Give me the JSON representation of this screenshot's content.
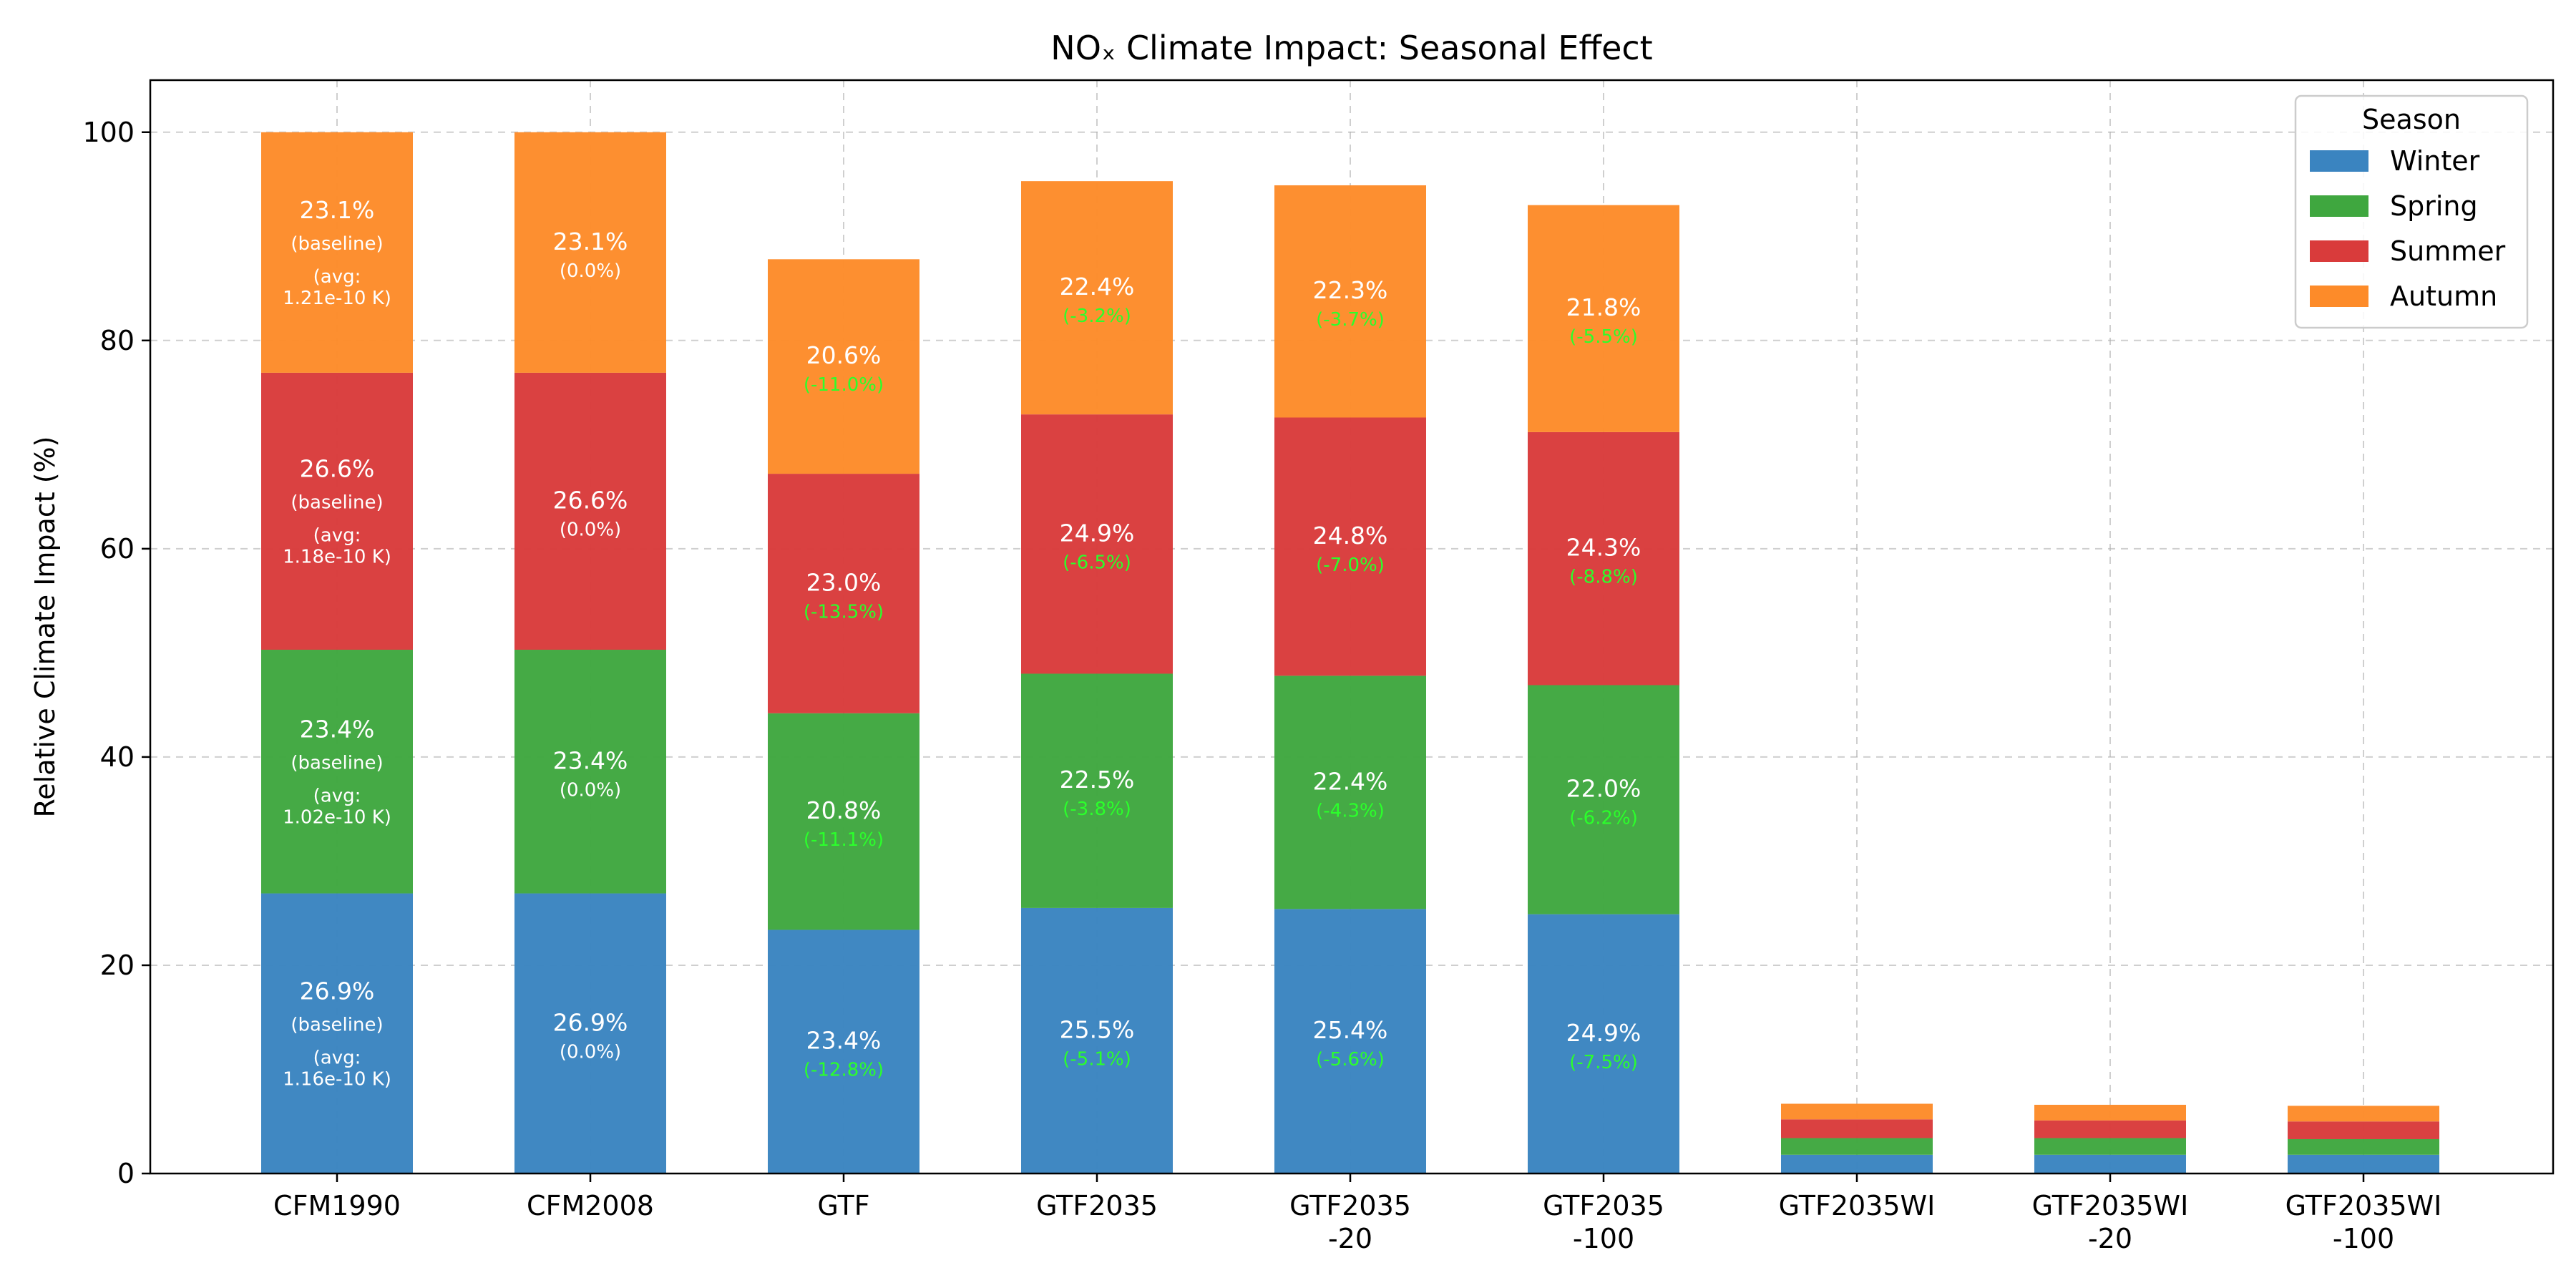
{
  "chart_data": {
    "type": "bar",
    "stacked": true,
    "title": "NOₓ Climate Impact: Seasonal Effect",
    "xlabel": "",
    "ylabel": "Relative Climate Impact (%)",
    "ylim": [
      0,
      105
    ],
    "yticks": [
      0,
      20,
      40,
      60,
      80,
      100
    ],
    "grid": true,
    "legend": {
      "title": "Season",
      "placement": "top-right"
    },
    "categories": [
      [
        "CFM1990"
      ],
      [
        "CFM2008"
      ],
      [
        "GTF"
      ],
      [
        "GTF2035"
      ],
      [
        "GTF2035",
        "-20"
      ],
      [
        "GTF2035",
        "-100"
      ],
      [
        "GTF2035WI"
      ],
      [
        "GTF2035WI",
        "-20"
      ],
      [
        "GTF2035WI",
        "-100"
      ]
    ],
    "series": [
      {
        "name": "Winter",
        "color": "#3a84c0",
        "values": [
          26.9,
          26.9,
          23.4,
          25.5,
          25.4,
          24.9,
          1.8,
          1.8,
          1.8
        ],
        "labels": [
          [
            "26.9%",
            "(baseline)",
            "(avg:",
            "1.16e-10 K)"
          ],
          [
            "26.9%",
            "(0.0%)"
          ],
          [
            "23.4%",
            "(-12.8%)"
          ],
          [
            "25.5%",
            "(-5.1%)"
          ],
          [
            "25.4%",
            "(-5.6%)"
          ],
          [
            "24.9%",
            "(-7.5%)"
          ],
          null,
          null,
          null
        ]
      },
      {
        "name": "Spring",
        "color": "#3fa73f",
        "values": [
          23.4,
          23.4,
          20.8,
          22.5,
          22.4,
          22.0,
          1.6,
          1.6,
          1.5
        ],
        "labels": [
          [
            "23.4%",
            "(baseline)",
            "(avg:",
            "1.02e-10 K)"
          ],
          [
            "23.4%",
            "(0.0%)"
          ],
          [
            "20.8%",
            "(-11.1%)"
          ],
          [
            "22.5%",
            "(-3.8%)"
          ],
          [
            "22.4%",
            "(-4.3%)"
          ],
          [
            "22.0%",
            "(-6.2%)"
          ],
          null,
          null,
          null
        ]
      },
      {
        "name": "Summer",
        "color": "#d93b3b",
        "values": [
          26.6,
          26.6,
          23.0,
          24.9,
          24.8,
          24.3,
          1.8,
          1.7,
          1.7
        ],
        "labels": [
          [
            "26.6%",
            "(baseline)",
            "(avg:",
            "1.18e-10 K)"
          ],
          [
            "26.6%",
            "(0.0%)"
          ],
          [
            "23.0%",
            "(-13.5%)"
          ],
          [
            "24.9%",
            "(-6.5%)"
          ],
          [
            "24.8%",
            "(-7.0%)"
          ],
          [
            "24.3%",
            "(-8.8%)"
          ],
          null,
          null,
          null
        ]
      },
      {
        "name": "Autumn",
        "color": "#fd8b29",
        "values": [
          23.1,
          23.1,
          20.6,
          22.4,
          22.3,
          21.8,
          1.5,
          1.5,
          1.5
        ],
        "labels": [
          [
            "23.1%",
            "(baseline)",
            "(avg:",
            "1.21e-10 K)"
          ],
          [
            "23.1%",
            "(0.0%)"
          ],
          [
            "20.6%",
            "(-11.0%)"
          ],
          [
            "22.4%",
            "(-3.2%)"
          ],
          [
            "22.3%",
            "(-3.7%)"
          ],
          [
            "21.8%",
            "(-5.5%)"
          ],
          null,
          null,
          null
        ]
      }
    ]
  }
}
